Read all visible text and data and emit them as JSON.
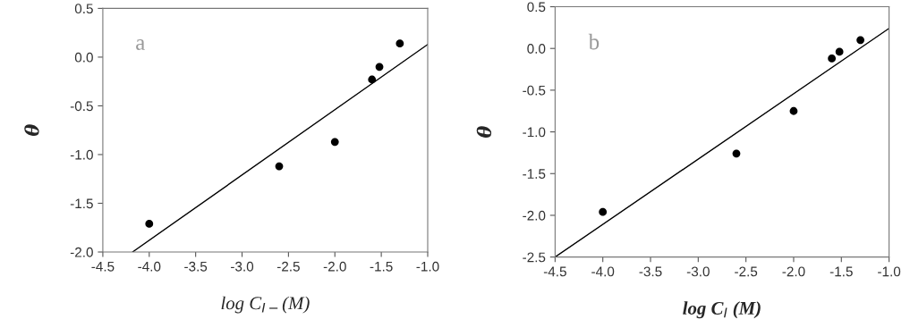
{
  "chart_data": [
    {
      "type": "scatter",
      "xlabel": "log C$_{I−}$(M)",
      "ylabel": "θ",
      "annotations": [
        "a"
      ],
      "xlim": [
        -4.5,
        -1.0
      ],
      "ylim": [
        -2.0,
        0.5
      ],
      "xticks": [
        -4.5,
        {
          "value": -4,
          "label": "-4.0"
        },
        -3.5,
        {
          "value": -3,
          "label": "-3.0"
        },
        -2.5,
        {
          "value": -2,
          "label": "-2.0"
        },
        -1.5,
        {
          "value": -1,
          "label": "-1.0"
        }
      ],
      "yticks": [
        {
          "value": -2,
          "label": "-2.0"
        },
        -1.5,
        {
          "value": -1,
          "label": "-1.0"
        },
        -0.5,
        {
          "value": 0,
          "label": "0.0"
        },
        0.5
      ],
      "grid": false,
      "legend": false,
      "series": [
        {
          "color": "#000000",
          "marker": "circle",
          "x": [
            -4.0,
            -2.6,
            -2.0,
            -1.6,
            -1.52,
            -1.3
          ],
          "values": [
            -1.71,
            -1.12,
            -0.87,
            -0.23,
            -0.1,
            0.14
          ]
        },
        {
          "type": "line",
          "color": "#000000",
          "line_style": "solid",
          "x": [
            -4.18,
            -1.0
          ],
          "values": [
            -2.0,
            0.13
          ]
        }
      ]
    },
    {
      "type": "scatter",
      "xlabel": "log C$_{I}$ (M)",
      "ylabel": "θ",
      "annotations": [
        "b"
      ],
      "xlim": [
        -4.5,
        -1.0
      ],
      "ylim": [
        -2.5,
        0.5
      ],
      "xticks": [
        -4.5,
        {
          "value": -4,
          "label": "-4.0"
        },
        -3.5,
        {
          "value": -3,
          "label": "-3.0"
        },
        -2.5,
        {
          "value": -2,
          "label": "-2.0"
        },
        -1.5,
        {
          "value": -1,
          "label": "-1.0"
        }
      ],
      "yticks": [
        -2.5,
        {
          "value": -2,
          "label": "-2.0"
        },
        -1.5,
        {
          "value": -1,
          "label": "-1.0"
        },
        -0.5,
        {
          "value": 0,
          "label": "0.0"
        },
        0.5
      ],
      "grid": false,
      "legend": false,
      "series": [
        {
          "color": "#000000",
          "marker": "circle",
          "x": [
            -4.0,
            -2.6,
            -2.0,
            -1.6,
            -1.52,
            -1.3
          ],
          "values": [
            -1.96,
            -1.26,
            -0.75,
            -0.12,
            -0.04,
            0.1
          ]
        },
        {
          "type": "line",
          "color": "#000000",
          "line_style": "solid",
          "x": [
            -4.5,
            -1.0
          ],
          "values": [
            -2.5,
            0.24
          ]
        }
      ]
    }
  ]
}
